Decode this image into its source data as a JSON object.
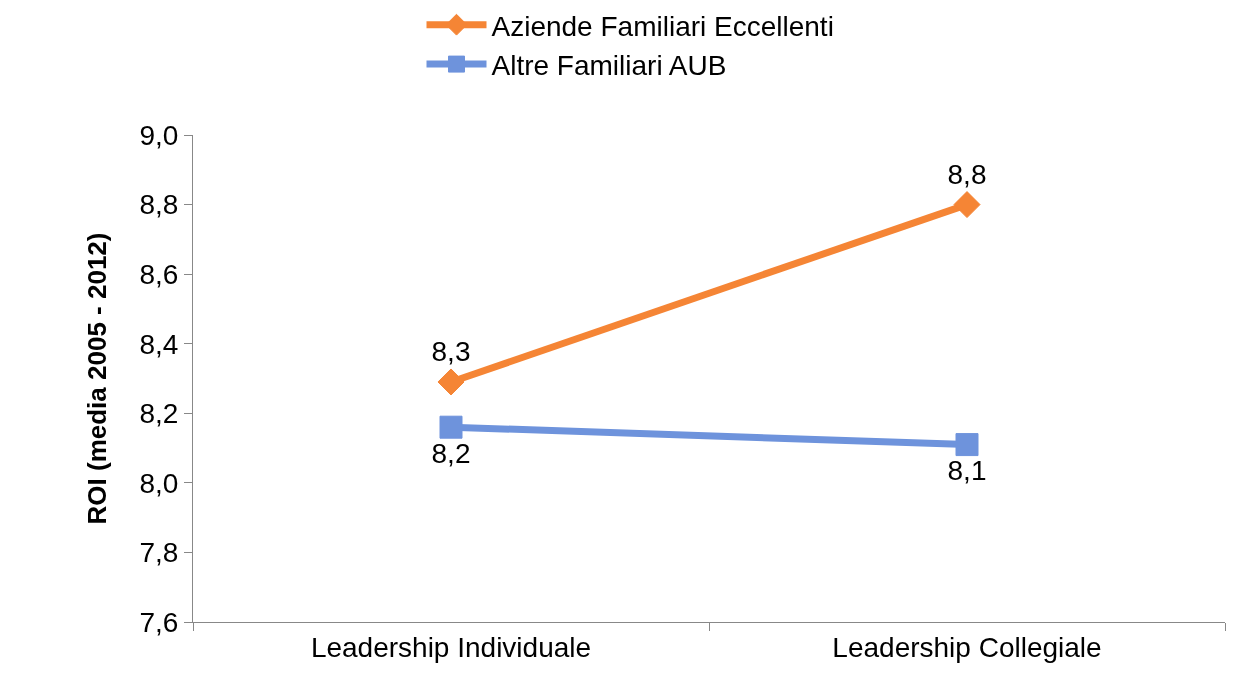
{
  "chart_data": {
    "type": "line",
    "ylabel": "ROI (media 2005 - 2012)",
    "categories": [
      "Leadership Individuale",
      "Leadership Collegiale"
    ],
    "series": [
      {
        "name": "Aziende Familiari Eccellenti",
        "color": "#f58535",
        "marker": "diamond",
        "values": [
          8.29,
          8.8
        ],
        "value_labels": [
          "8,3",
          "8,8"
        ]
      },
      {
        "name": "Altre Familiari AUB",
        "color": "#6e93dc",
        "marker": "square",
        "values": [
          8.16,
          8.11
        ],
        "value_labels": [
          "8,2",
          "8,1"
        ]
      }
    ],
    "ylim": [
      7.6,
      9.0
    ],
    "yticks": [
      {
        "value": 7.6,
        "label": "7,6"
      },
      {
        "value": 7.8,
        "label": "7,8"
      },
      {
        "value": 8.0,
        "label": "8,0"
      },
      {
        "value": 8.2,
        "label": "8,2"
      },
      {
        "value": 8.4,
        "label": "8,4"
      },
      {
        "value": 8.6,
        "label": "8,6"
      },
      {
        "value": 8.8,
        "label": "8,8"
      },
      {
        "value": 9.0,
        "label": "9,0"
      }
    ],
    "legend": "top",
    "line_style": "solid"
  }
}
